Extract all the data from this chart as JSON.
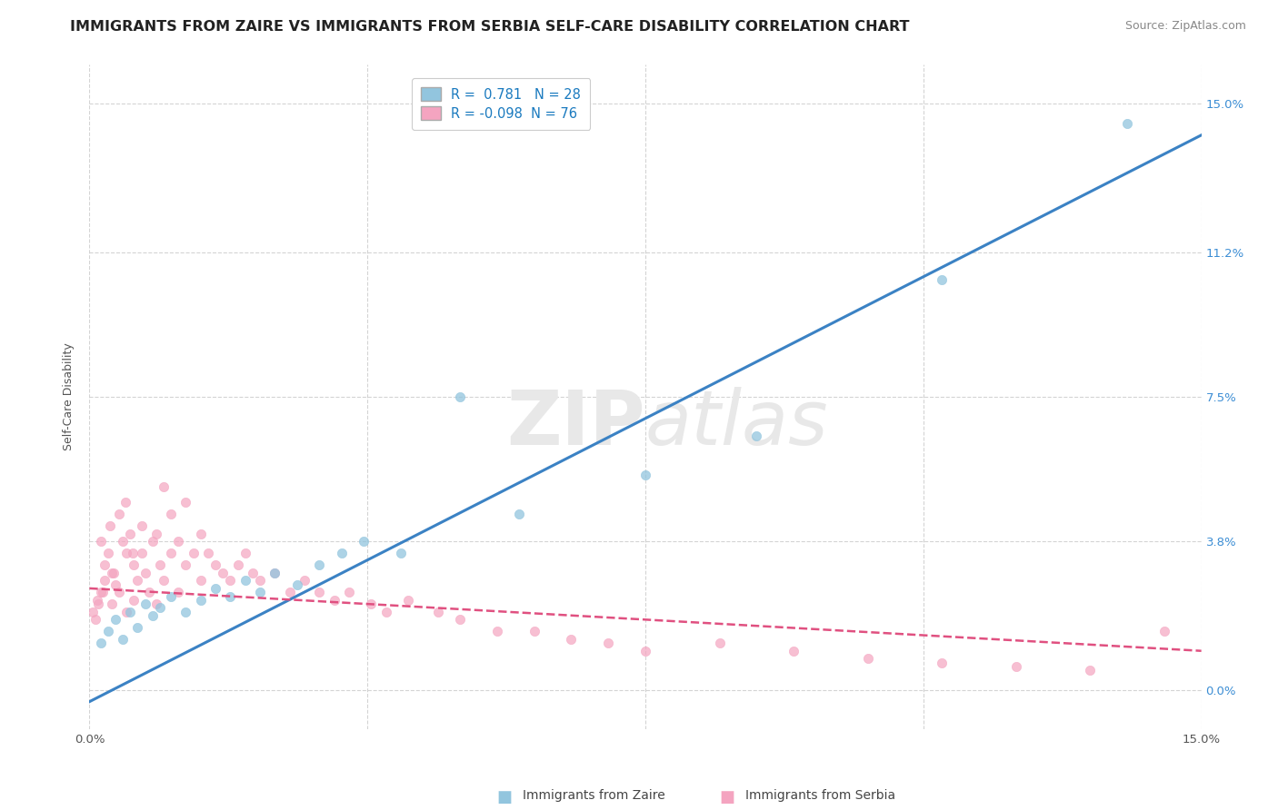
{
  "title": "IMMIGRANTS FROM ZAIRE VS IMMIGRANTS FROM SERBIA SELF-CARE DISABILITY CORRELATION CHART",
  "source": "Source: ZipAtlas.com",
  "ylabel": "Self-Care Disability",
  "ytick_values": [
    0.0,
    3.8,
    7.5,
    11.2,
    15.0
  ],
  "xlim": [
    0.0,
    15.0
  ],
  "ylim": [
    -1.0,
    16.0
  ],
  "zaire_R": 0.781,
  "zaire_N": 28,
  "serbia_R": -0.098,
  "serbia_N": 76,
  "zaire_color": "#92c5de",
  "serbia_color": "#f4a4c0",
  "trendline_zaire_color": "#3b82c4",
  "trendline_serbia_color": "#e05080",
  "title_fontsize": 11.5,
  "axis_label_fontsize": 9,
  "tick_fontsize": 9.5,
  "source_fontsize": 9,
  "background_color": "#ffffff",
  "zaire_points_x": [
    0.15,
    0.25,
    0.35,
    0.45,
    0.55,
    0.65,
    0.75,
    0.85,
    0.95,
    1.1,
    1.3,
    1.5,
    1.7,
    1.9,
    2.1,
    2.3,
    2.5,
    2.8,
    3.1,
    3.4,
    3.7,
    4.2,
    5.0,
    5.8,
    7.5,
    9.0,
    11.5,
    14.0
  ],
  "zaire_points_y": [
    1.2,
    1.5,
    1.8,
    1.3,
    2.0,
    1.6,
    2.2,
    1.9,
    2.1,
    2.4,
    2.0,
    2.3,
    2.6,
    2.4,
    2.8,
    2.5,
    3.0,
    2.7,
    3.2,
    3.5,
    3.8,
    3.5,
    7.5,
    4.5,
    5.5,
    6.5,
    10.5,
    14.5
  ],
  "serbia_points_x": [
    0.05,
    0.1,
    0.15,
    0.15,
    0.2,
    0.2,
    0.25,
    0.3,
    0.3,
    0.35,
    0.4,
    0.4,
    0.45,
    0.5,
    0.5,
    0.55,
    0.6,
    0.6,
    0.65,
    0.7,
    0.7,
    0.75,
    0.8,
    0.85,
    0.9,
    0.9,
    0.95,
    1.0,
    1.0,
    1.1,
    1.1,
    1.2,
    1.2,
    1.3,
    1.3,
    1.4,
    1.5,
    1.5,
    1.6,
    1.7,
    1.8,
    1.9,
    2.0,
    2.1,
    2.2,
    2.3,
    2.5,
    2.7,
    2.9,
    3.1,
    3.3,
    3.5,
    3.8,
    4.0,
    4.3,
    4.7,
    5.0,
    5.5,
    6.0,
    6.5,
    7.0,
    7.5,
    8.5,
    9.5,
    10.5,
    11.5,
    12.5,
    13.5,
    14.5,
    0.08,
    0.12,
    0.18,
    0.28,
    0.32,
    0.48,
    0.58
  ],
  "serbia_points_y": [
    2.0,
    2.3,
    2.5,
    3.8,
    2.8,
    3.2,
    3.5,
    2.2,
    3.0,
    2.7,
    2.5,
    4.5,
    3.8,
    2.0,
    3.5,
    4.0,
    2.3,
    3.2,
    2.8,
    3.5,
    4.2,
    3.0,
    2.5,
    3.8,
    2.2,
    4.0,
    3.2,
    2.8,
    5.2,
    3.5,
    4.5,
    2.5,
    3.8,
    3.2,
    4.8,
    3.5,
    2.8,
    4.0,
    3.5,
    3.2,
    3.0,
    2.8,
    3.2,
    3.5,
    3.0,
    2.8,
    3.0,
    2.5,
    2.8,
    2.5,
    2.3,
    2.5,
    2.2,
    2.0,
    2.3,
    2.0,
    1.8,
    1.5,
    1.5,
    1.3,
    1.2,
    1.0,
    1.2,
    1.0,
    0.8,
    0.7,
    0.6,
    0.5,
    1.5,
    1.8,
    2.2,
    2.5,
    4.2,
    3.0,
    4.8,
    3.5
  ]
}
